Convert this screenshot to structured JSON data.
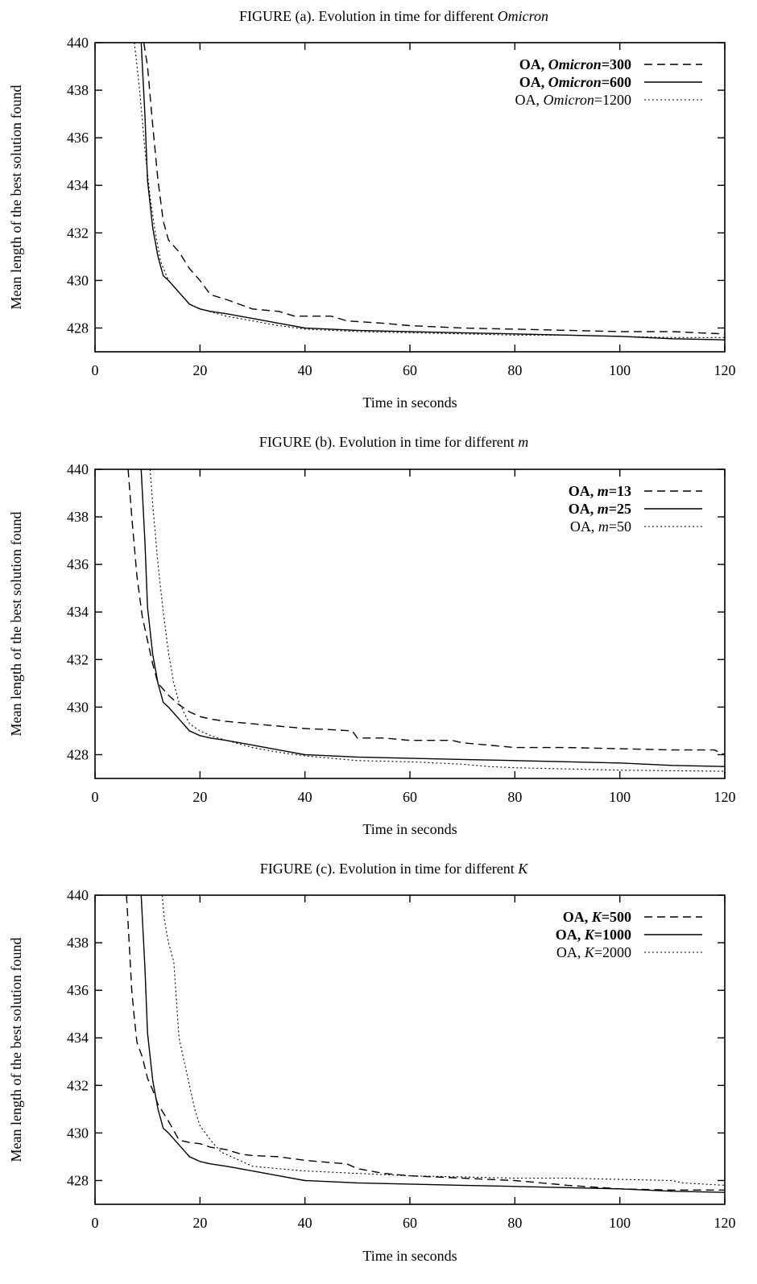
{
  "chart_data": [
    {
      "type": "line",
      "title": "FIGURE (a). Evolution in time for different ",
      "title_var": "Omicron",
      "xlabel": "Time in seconds",
      "ylabel": "Mean length of the best solution found",
      "xlim": [
        0,
        120
      ],
      "ylim": [
        427,
        440
      ],
      "xticks": [
        0,
        20,
        40,
        60,
        80,
        100,
        120
      ],
      "yticks": [
        428,
        430,
        432,
        434,
        436,
        438,
        440
      ],
      "legend_position": "top-right",
      "series": [
        {
          "name": "OA, Omicron=300",
          "legend": {
            "prefix": "OA, ",
            "var": "Omicron",
            "suffix": "=300",
            "bold": true
          },
          "style": "dashed",
          "points": [
            [
              9.3,
              440
            ],
            [
              10,
              439
            ],
            [
              11,
              436.5
            ],
            [
              12,
              434.2
            ],
            [
              13,
              432.5
            ],
            [
              14,
              431.7
            ],
            [
              16,
              431.2
            ],
            [
              18,
              430.5
            ],
            [
              20,
              430
            ],
            [
              22,
              429.4
            ],
            [
              25,
              429.2
            ],
            [
              30,
              428.8
            ],
            [
              35,
              428.7
            ],
            [
              38,
              428.5
            ],
            [
              45,
              428.5
            ],
            [
              48,
              428.3
            ],
            [
              55,
              428.2
            ],
            [
              60,
              428.1
            ],
            [
              70,
              428
            ],
            [
              80,
              427.95
            ],
            [
              90,
              427.9
            ],
            [
              100,
              427.85
            ],
            [
              110,
              427.85
            ],
            [
              115,
              427.8
            ],
            [
              120,
              427.75
            ]
          ]
        },
        {
          "name": "OA, Omicron=600",
          "legend": {
            "prefix": "OA, ",
            "var": "Omicron",
            "suffix": "=600",
            "bold": true
          },
          "style": "solid",
          "points": [
            [
              8.8,
              440
            ],
            [
              9.5,
              437
            ],
            [
              10,
              434.2
            ],
            [
              11,
              432.2
            ],
            [
              12,
              431
            ],
            [
              13,
              430.2
            ],
            [
              14,
              430
            ],
            [
              16,
              429.5
            ],
            [
              18,
              429
            ],
            [
              20,
              428.8
            ],
            [
              22,
              428.7
            ],
            [
              25,
              428.6
            ],
            [
              30,
              428.4
            ],
            [
              35,
              428.2
            ],
            [
              40,
              428
            ],
            [
              45,
              427.95
            ],
            [
              50,
              427.9
            ],
            [
              60,
              427.85
            ],
            [
              70,
              427.8
            ],
            [
              80,
              427.75
            ],
            [
              90,
              427.7
            ],
            [
              100,
              427.65
            ],
            [
              110,
              427.55
            ],
            [
              120,
              427.5
            ]
          ]
        },
        {
          "name": "OA, Omicron=1200",
          "legend": {
            "prefix": "OA, ",
            "var": "Omicron",
            "suffix": "=1200",
            "bold": false
          },
          "style": "dotted",
          "points": [
            [
              7.5,
              440
            ],
            [
              8.5,
              438
            ],
            [
              9.5,
              435.5
            ],
            [
              10.5,
              433.5
            ],
            [
              11.5,
              432
            ],
            [
              12.5,
              430.8
            ],
            [
              14,
              430
            ],
            [
              16,
              429.5
            ],
            [
              18,
              429
            ],
            [
              20,
              428.8
            ],
            [
              25,
              428.5
            ],
            [
              30,
              428.3
            ],
            [
              35,
              428.1
            ],
            [
              40,
              427.95
            ],
            [
              45,
              427.9
            ],
            [
              50,
              427.85
            ],
            [
              60,
              427.8
            ],
            [
              70,
              427.75
            ],
            [
              80,
              427.7
            ],
            [
              90,
              427.7
            ],
            [
              100,
              427.65
            ],
            [
              110,
              427.6
            ],
            [
              120,
              427.6
            ]
          ]
        }
      ]
    },
    {
      "type": "line",
      "title": "FIGURE (b). Evolution in time for different ",
      "title_var": "m",
      "xlabel": "Time in seconds",
      "ylabel": "Mean length of the best solution found",
      "xlim": [
        0,
        120
      ],
      "ylim": [
        427,
        440
      ],
      "xticks": [
        0,
        20,
        40,
        60,
        80,
        100,
        120
      ],
      "yticks": [
        428,
        430,
        432,
        434,
        436,
        438,
        440
      ],
      "legend_position": "top-right",
      "series": [
        {
          "name": "OA, m=13",
          "legend": {
            "prefix": "OA, ",
            "var": "m",
            "suffix": "=13",
            "bold": true
          },
          "style": "dashed",
          "points": [
            [
              6.3,
              440
            ],
            [
              7,
              438
            ],
            [
              8,
              435.5
            ],
            [
              9,
              433.8
            ],
            [
              10,
              432.8
            ],
            [
              11,
              431.8
            ],
            [
              12,
              431
            ],
            [
              14,
              430.5
            ],
            [
              16,
              430.1
            ],
            [
              18,
              429.8
            ],
            [
              20,
              429.6
            ],
            [
              22,
              429.5
            ],
            [
              25,
              429.4
            ],
            [
              30,
              429.3
            ],
            [
              35,
              429.2
            ],
            [
              40,
              429.1
            ],
            [
              45,
              429.05
            ],
            [
              49,
              429
            ],
            [
              50,
              428.7
            ],
            [
              55,
              428.7
            ],
            [
              60,
              428.6
            ],
            [
              68,
              428.6
            ],
            [
              70,
              428.5
            ],
            [
              75,
              428.4
            ],
            [
              80,
              428.3
            ],
            [
              90,
              428.3
            ],
            [
              100,
              428.25
            ],
            [
              110,
              428.2
            ],
            [
              118,
              428.2
            ],
            [
              120,
              428
            ]
          ]
        },
        {
          "name": "OA, m=25",
          "legend": {
            "prefix": "OA, ",
            "var": "m",
            "suffix": "=25",
            "bold": true
          },
          "style": "solid",
          "points": [
            [
              8.8,
              440
            ],
            [
              9.5,
              437
            ],
            [
              10,
              434.2
            ],
            [
              11,
              432.2
            ],
            [
              12,
              431
            ],
            [
              13,
              430.2
            ],
            [
              14,
              430
            ],
            [
              16,
              429.5
            ],
            [
              18,
              429
            ],
            [
              20,
              428.8
            ],
            [
              22,
              428.7
            ],
            [
              25,
              428.6
            ],
            [
              30,
              428.4
            ],
            [
              35,
              428.2
            ],
            [
              40,
              428
            ],
            [
              45,
              427.95
            ],
            [
              50,
              427.9
            ],
            [
              60,
              427.85
            ],
            [
              70,
              427.8
            ],
            [
              80,
              427.75
            ],
            [
              90,
              427.7
            ],
            [
              100,
              427.65
            ],
            [
              110,
              427.55
            ],
            [
              120,
              427.5
            ]
          ]
        },
        {
          "name": "OA, m=50",
          "legend": {
            "prefix": "OA, ",
            "var": "m",
            "suffix": "=50",
            "bold": false
          },
          "style": "dotted",
          "points": [
            [
              10.5,
              440
            ],
            [
              11,
              438.5
            ],
            [
              12,
              436
            ],
            [
              13,
              434
            ],
            [
              14,
              432.3
            ],
            [
              15,
              431
            ],
            [
              16,
              430.2
            ],
            [
              18,
              429.3
            ],
            [
              20,
              429
            ],
            [
              22,
              428.8
            ],
            [
              25,
              428.6
            ],
            [
              30,
              428.3
            ],
            [
              35,
              428.1
            ],
            [
              40,
              427.95
            ],
            [
              45,
              427.85
            ],
            [
              50,
              427.75
            ],
            [
              60,
              427.7
            ],
            [
              70,
              427.6
            ],
            [
              75,
              427.5
            ],
            [
              80,
              427.45
            ],
            [
              90,
              427.4
            ],
            [
              100,
              427.35
            ],
            [
              120,
              427.3
            ]
          ]
        }
      ]
    },
    {
      "type": "line",
      "title": "FIGURE (c). Evolution in time for different ",
      "title_var": "K",
      "xlabel": "Time in seconds",
      "ylabel": "Mean length of the best solution found",
      "xlim": [
        0,
        120
      ],
      "ylim": [
        427,
        440
      ],
      "xticks": [
        0,
        20,
        40,
        60,
        80,
        100,
        120
      ],
      "yticks": [
        428,
        430,
        432,
        434,
        436,
        438,
        440
      ],
      "legend_position": "top-right",
      "series": [
        {
          "name": "OA, K=500",
          "legend": {
            "prefix": "OA, ",
            "var": "K",
            "suffix": "=500",
            "bold": true
          },
          "style": "dashed",
          "points": [
            [
              6,
              440
            ],
            [
              6.5,
              438
            ],
            [
              7,
              436
            ],
            [
              7.5,
              434.8
            ],
            [
              8,
              433.8
            ],
            [
              9,
              433.2
            ],
            [
              10,
              432.3
            ],
            [
              11,
              431.8
            ],
            [
              12,
              431.2
            ],
            [
              14,
              430.5
            ],
            [
              16,
              429.7
            ],
            [
              18,
              429.6
            ],
            [
              20,
              429.55
            ],
            [
              22,
              429.4
            ],
            [
              25,
              429.3
            ],
            [
              28,
              429.1
            ],
            [
              30,
              429.05
            ],
            [
              35,
              429
            ],
            [
              40,
              428.85
            ],
            [
              45,
              428.75
            ],
            [
              48,
              428.7
            ],
            [
              50,
              428.5
            ],
            [
              55,
              428.3
            ],
            [
              60,
              428.2
            ],
            [
              70,
              428.1
            ],
            [
              80,
              428
            ],
            [
              85,
              427.9
            ],
            [
              90,
              427.8
            ],
            [
              100,
              427.65
            ],
            [
              110,
              427.6
            ],
            [
              120,
              427.6
            ]
          ]
        },
        {
          "name": "OA, K=1000",
          "legend": {
            "prefix": "OA, ",
            "var": "K",
            "suffix": "=1000",
            "bold": true
          },
          "style": "solid",
          "points": [
            [
              8.8,
              440
            ],
            [
              9.5,
              437
            ],
            [
              10,
              434.2
            ],
            [
              11,
              432.2
            ],
            [
              12,
              431
            ],
            [
              13,
              430.2
            ],
            [
              14,
              430
            ],
            [
              16,
              429.5
            ],
            [
              18,
              429
            ],
            [
              20,
              428.8
            ],
            [
              22,
              428.7
            ],
            [
              25,
              428.6
            ],
            [
              30,
              428.4
            ],
            [
              35,
              428.2
            ],
            [
              40,
              428
            ],
            [
              45,
              427.95
            ],
            [
              50,
              427.9
            ],
            [
              60,
              427.85
            ],
            [
              70,
              427.8
            ],
            [
              80,
              427.75
            ],
            [
              90,
              427.7
            ],
            [
              100,
              427.65
            ],
            [
              110,
              427.55
            ],
            [
              120,
              427.5
            ]
          ]
        },
        {
          "name": "OA, K=2000",
          "legend": {
            "prefix": "OA, ",
            "var": "K",
            "suffix": "=2000",
            "bold": false
          },
          "style": "dotted",
          "points": [
            [
              12.8,
              440
            ],
            [
              13.2,
              439
            ],
            [
              14,
              438
            ],
            [
              15,
              437.2
            ],
            [
              16,
              434
            ],
            [
              17,
              433
            ],
            [
              18,
              432
            ],
            [
              19,
              431
            ],
            [
              20,
              430.3
            ],
            [
              22,
              429.7
            ],
            [
              24,
              429.2
            ],
            [
              26,
              429
            ],
            [
              28,
              428.8
            ],
            [
              30,
              428.6
            ],
            [
              35,
              428.5
            ],
            [
              40,
              428.4
            ],
            [
              45,
              428.35
            ],
            [
              50,
              428.3
            ],
            [
              55,
              428.25
            ],
            [
              60,
              428.2
            ],
            [
              70,
              428.15
            ],
            [
              80,
              428.1
            ],
            [
              90,
              428.1
            ],
            [
              100,
              428.05
            ],
            [
              110,
              428
            ],
            [
              112,
              427.9
            ],
            [
              120,
              427.8
            ]
          ]
        }
      ]
    }
  ]
}
